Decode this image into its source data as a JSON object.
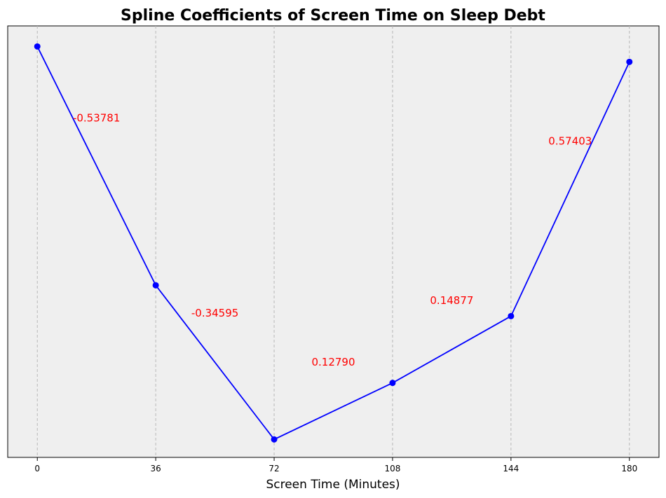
{
  "chart_data": {
    "type": "line",
    "title": "Spline Coefficients of Screen Time on Sleep Debt",
    "xlabel": "Screen Time (Minutes)",
    "ylabel": "",
    "x_ticks": [
      0,
      36,
      72,
      108,
      144,
      180
    ],
    "xlim": [
      -9,
      189
    ],
    "y_ticks_shown": false,
    "grid": "vertical dashed",
    "series": [
      {
        "x": [
          0,
          36,
          72,
          108,
          144,
          180
        ],
        "y": [
          0.6,
          -0.33,
          -0.93,
          -0.71,
          -0.45,
          0.54
        ],
        "color": "#0000ff"
      }
    ],
    "ylim": [
      -1.0,
      0.68
    ],
    "annotations": [
      {
        "text": "-0.53781",
        "x": 18,
        "y": 0.32
      },
      {
        "text": "-0.34595",
        "x": 54,
        "y": -0.44
      },
      {
        "text": "0.12790",
        "x": 90,
        "y": -0.63
      },
      {
        "text": "0.14877",
        "x": 126,
        "y": -0.39
      },
      {
        "text": "0.57403",
        "x": 162,
        "y": 0.23
      }
    ],
    "annotation_color": "#ff0000",
    "background_color": "#efefef"
  }
}
